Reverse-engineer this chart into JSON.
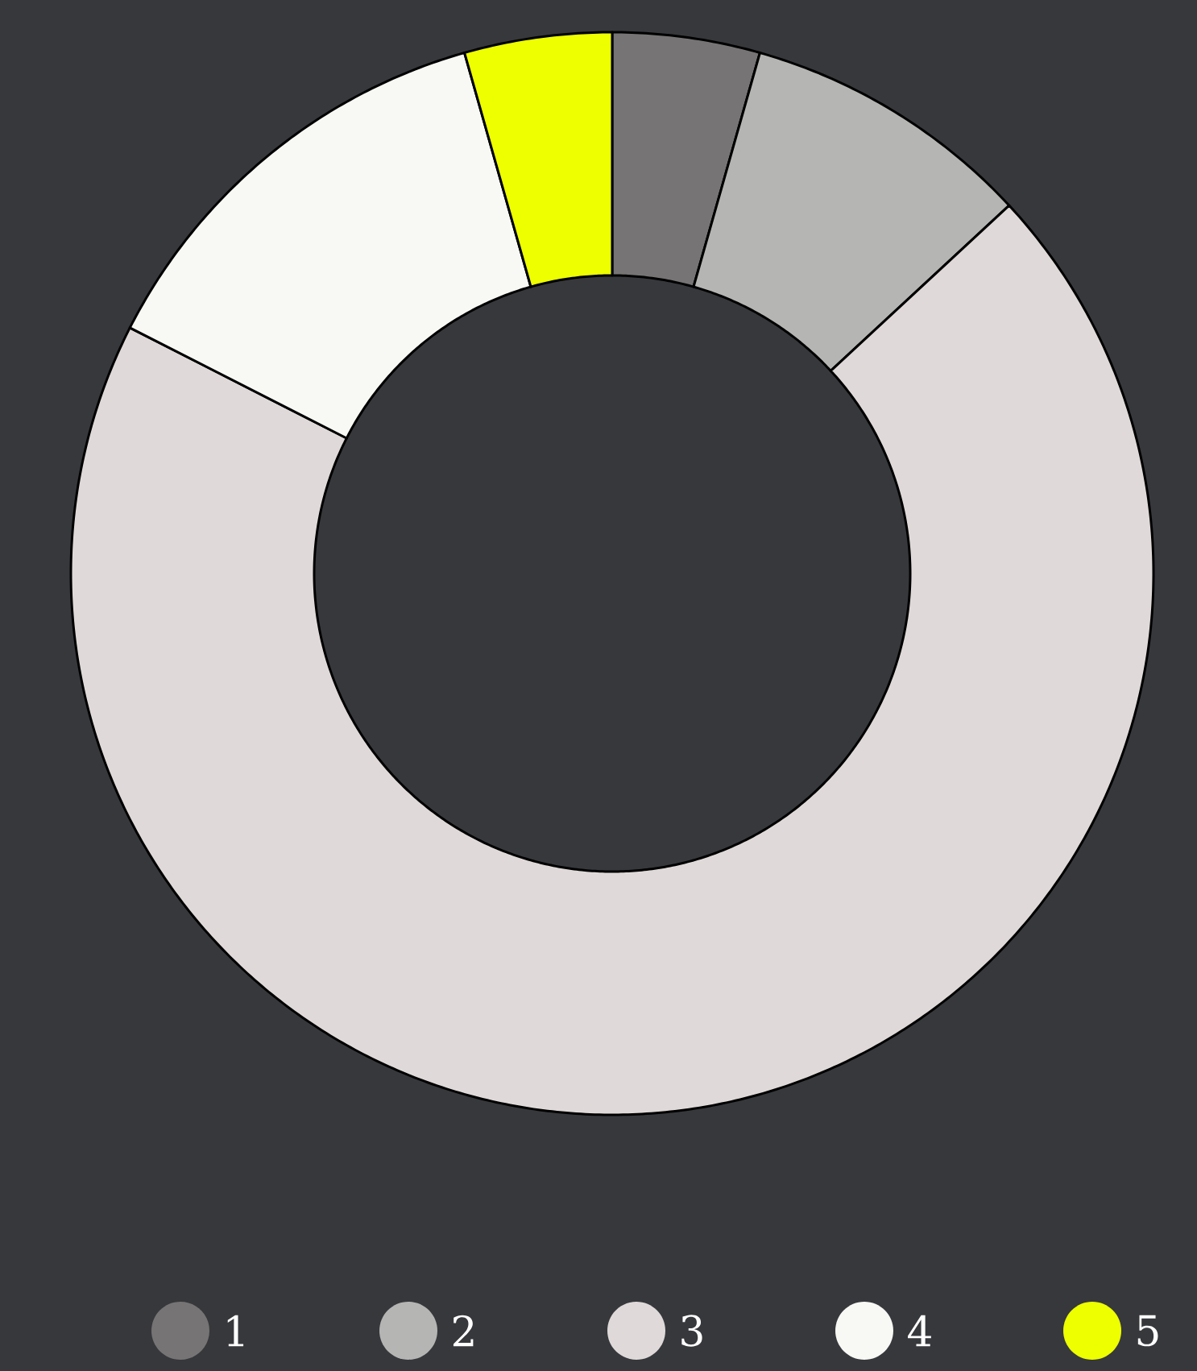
{
  "chart_data": {
    "type": "donut",
    "categories": [
      "1",
      "2",
      "3",
      "4",
      "5"
    ],
    "values": [
      4.4,
      8.7,
      69.4,
      13.1,
      4.4
    ],
    "colors": [
      "#767474",
      "#b5b5b3",
      "#dfdad9",
      "#f8f8f4",
      "#eeff00"
    ],
    "legend": "bottom"
  }
}
